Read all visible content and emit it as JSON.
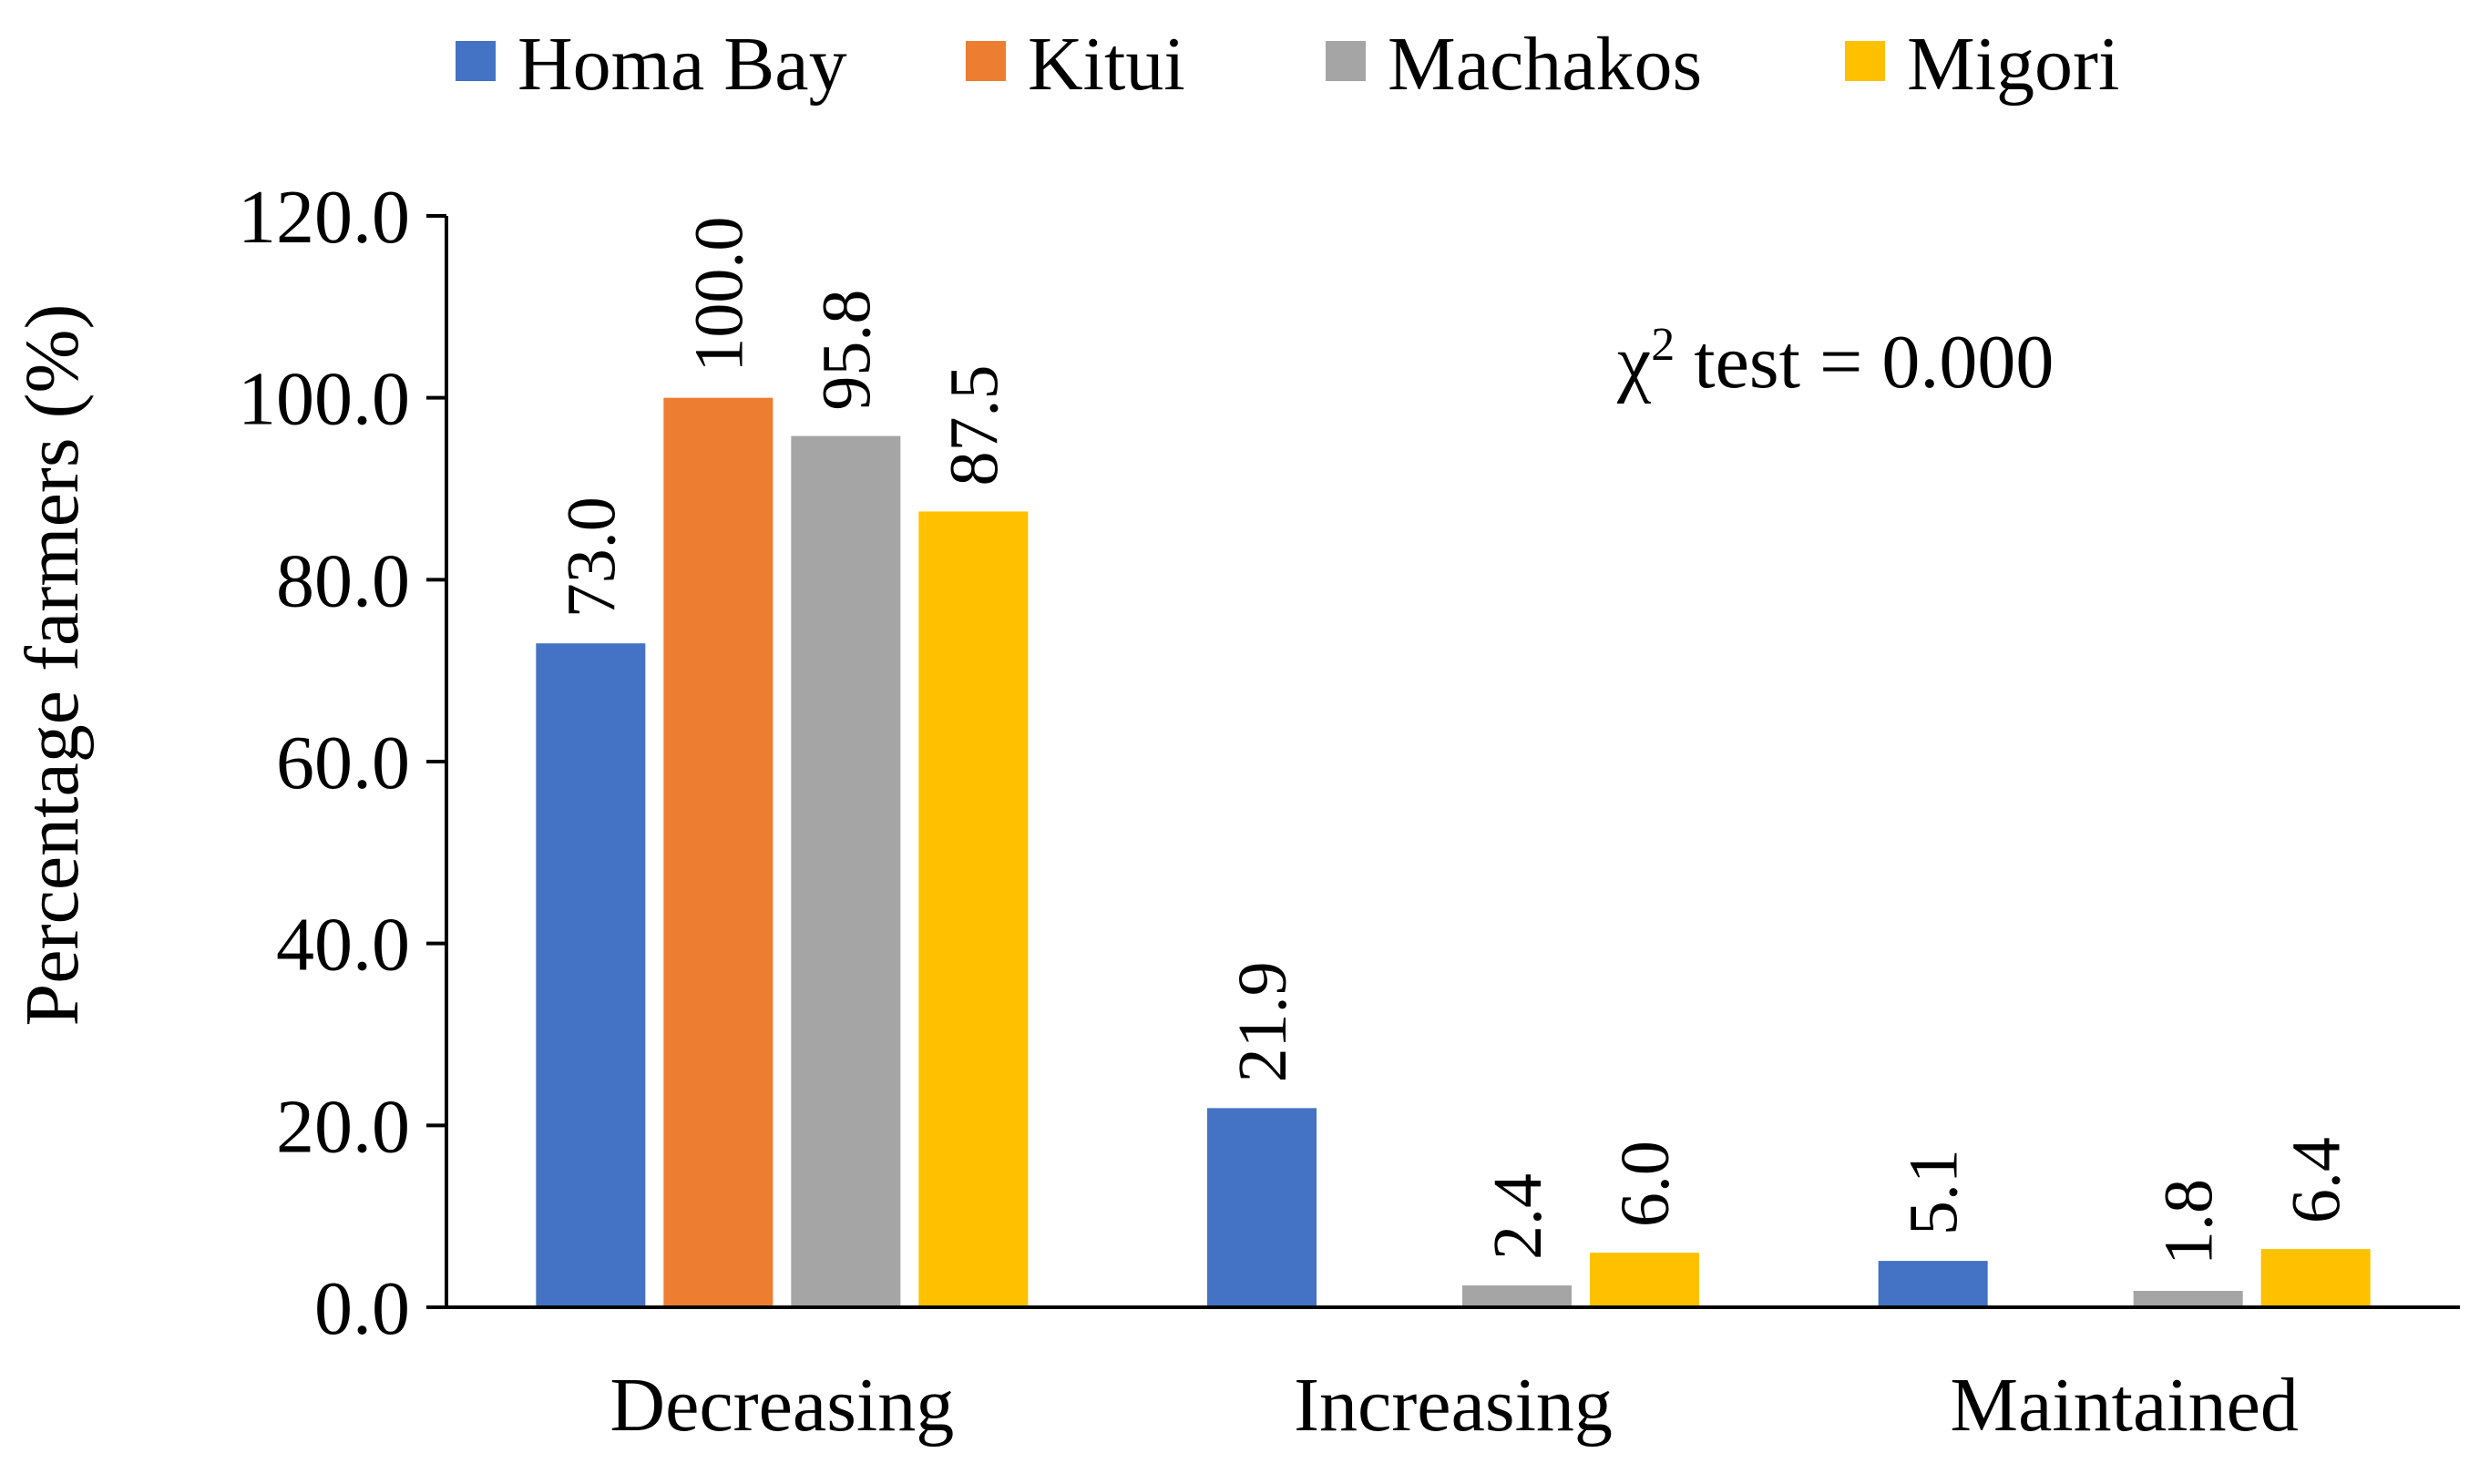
{
  "chart_data": {
    "type": "bar",
    "title": "",
    "xlabel": "",
    "ylabel": "Percentage farmers (%)",
    "ylim": [
      0,
      120
    ],
    "ytick_step": 20,
    "ytick_labels": [
      "0.0",
      "20.0",
      "40.0",
      "60.0",
      "80.0",
      "100.0",
      "120.0"
    ],
    "grid": false,
    "legend_position": "top",
    "categories": [
      "Decreasing",
      "Increasing",
      "Maintained"
    ],
    "series": [
      {
        "name": "Homa Bay",
        "color": "#4472C4",
        "values": [
          73.0,
          21.9,
          5.1
        ],
        "labels": [
          "73.0",
          "21.9",
          "5.1"
        ]
      },
      {
        "name": "Kitui",
        "color": "#ED7D31",
        "values": [
          100.0,
          0,
          0
        ],
        "labels": [
          "100.0",
          "",
          ""
        ]
      },
      {
        "name": "Machakos",
        "color": "#A5A5A5",
        "values": [
          95.8,
          2.4,
          1.8
        ],
        "labels": [
          "95.8",
          "2.4",
          "1.8"
        ]
      },
      {
        "name": "Migori",
        "color": "#FFC000",
        "values": [
          87.5,
          6.0,
          6.4
        ],
        "labels": [
          "87.5",
          "6.0",
          "6.4"
        ]
      }
    ],
    "annotation": {
      "symbol": "χ",
      "superscript": "2",
      "text": " test = 0.000"
    }
  }
}
